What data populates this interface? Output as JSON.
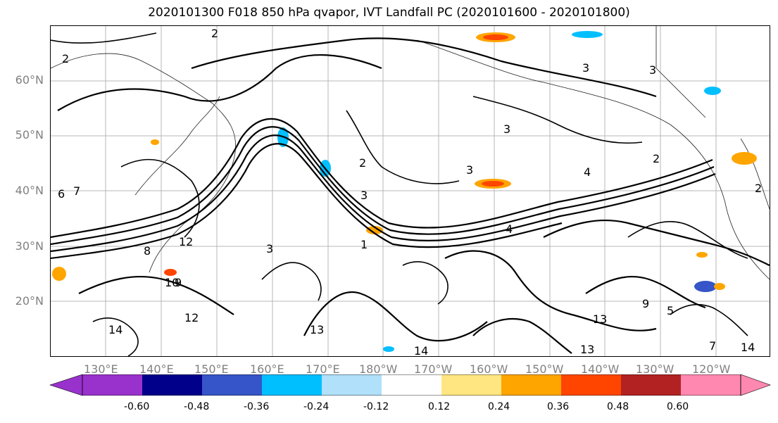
{
  "title": "2020101300 F018 850 hPa qvapor, IVT Landfall PC (2020101600 - 2020101800)",
  "lat_labels": [
    "60°N",
    "50°N",
    "40°N",
    "30°N",
    "20°N"
  ],
  "lon_labels": [
    "130°E",
    "140°E",
    "150°E",
    "160°E",
    "170°E",
    "180°W",
    "170°W",
    "160°W",
    "150°W",
    "140°W",
    "130°W",
    "120°W"
  ],
  "colorbar": {
    "ticks": [
      "-0.60",
      "-0.48",
      "-0.36",
      "-0.24",
      "-0.12",
      "0.12",
      "0.24",
      "0.36",
      "0.48",
      "0.60"
    ],
    "colors": [
      "#9932CC",
      "#00008B",
      "#3655C8",
      "#00BFFF",
      "#B0E0FA",
      "#FFFFFF",
      "#FFE680",
      "#FFA500",
      "#FF4500",
      "#B22222",
      "#FF88B0"
    ]
  },
  "contour_labels": [
    "2",
    "3",
    "3",
    "2",
    "3",
    "3",
    "2",
    "3",
    "4",
    "2",
    "1",
    "3",
    "6",
    "7",
    "8",
    "9",
    "10",
    "12",
    "13",
    "14",
    "13",
    "14",
    "9",
    "13",
    "7",
    "3",
    "2",
    "14",
    "12",
    "4",
    "5"
  ]
}
